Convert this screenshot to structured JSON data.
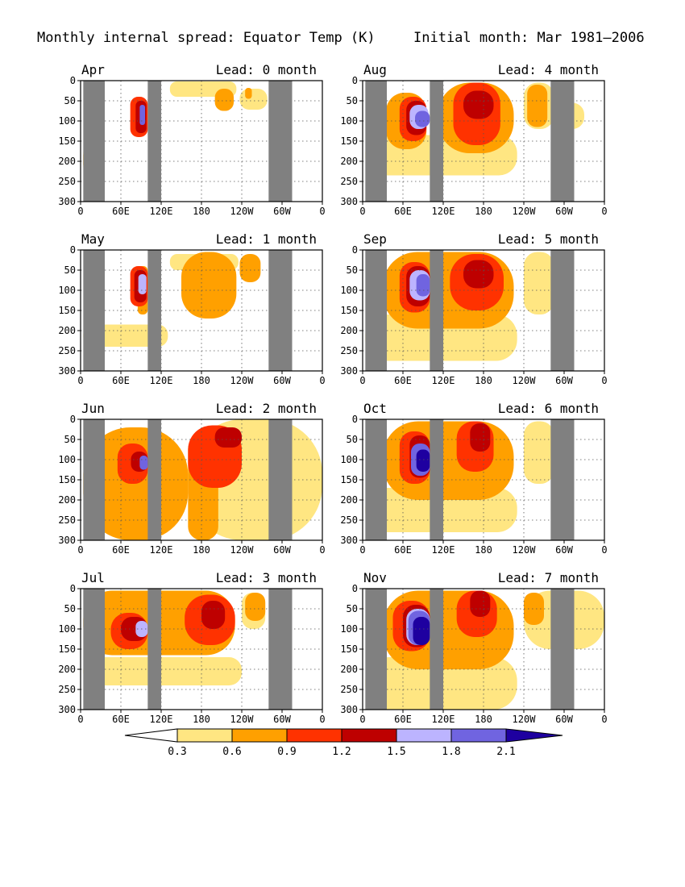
{
  "figure": {
    "title_left": "Monthly internal spread: Equator Temp (K)",
    "title_right": "Initial month: Mar 1981–2006"
  },
  "colorbar": {
    "levels": [
      "0.3",
      "0.6",
      "0.9",
      "1.2",
      "1.5",
      "1.8",
      "2.1"
    ],
    "colors": [
      "#ffffff",
      "#ffe682",
      "#ffa000",
      "#ff3200",
      "#be0000",
      "#bcb4ff",
      "#7064e0",
      "#1e00a0"
    ]
  },
  "land_color": "#808080",
  "chart_data": {
    "type": "heatmap",
    "variable": "Equator Temp (K)",
    "x_ticks": [
      "0",
      "60E",
      "120E",
      "180",
      "120W",
      "60W",
      "0"
    ],
    "y_ticks": [
      "0",
      "50",
      "100",
      "150",
      "200",
      "250",
      "300"
    ],
    "xlim": [
      0,
      360
    ],
    "ylim": [
      0,
      300
    ],
    "grid": true,
    "panels": [
      {
        "month": "Apr",
        "lead": "Lead: 0 month",
        "layers": [
          {
            "level": 1,
            "boxes": [
              [
                4,
                12,
                172,
                220
              ],
              [
                133,
                232,
                2,
                40
              ],
              [
                237,
                278,
                20,
                72
              ]
            ]
          },
          {
            "level": 2,
            "boxes": [
              [
                4,
                12,
                178,
                215
              ],
              [
                200,
                228,
                20,
                75
              ],
              [
                245,
                255,
                18,
                45
              ]
            ]
          },
          {
            "level": 3,
            "boxes": [
              [
                74,
                100,
                40,
                140
              ],
              [
                100,
                120,
                35,
                65
              ]
            ]
          },
          {
            "level": 4,
            "boxes": [
              [
                82,
                98,
                50,
                130
              ]
            ]
          },
          {
            "level": 6,
            "boxes": [
              [
                88,
                96,
                60,
                110
              ]
            ]
          }
        ]
      },
      {
        "month": "Aug",
        "lead": "Lead: 4 month",
        "layers": [
          {
            "level": 1,
            "boxes": [
              [
                4,
                230,
                135,
                235
              ],
              [
                240,
                285,
                5,
                120
              ],
              [
                285,
                330,
                55,
                120
              ]
            ]
          },
          {
            "level": 2,
            "boxes": [
              [
                35,
                95,
                30,
                170
              ],
              [
                112,
                225,
                5,
                180
              ],
              [
                245,
                275,
                10,
                115
              ]
            ]
          },
          {
            "level": 3,
            "boxes": [
              [
                55,
                95,
                40,
                150
              ],
              [
                135,
                205,
                5,
                160
              ]
            ]
          },
          {
            "level": 4,
            "boxes": [
              [
                65,
                95,
                50,
                135
              ],
              [
                150,
                195,
                25,
                95
              ]
            ]
          },
          {
            "level": 5,
            "boxes": [
              [
                70,
                98,
                60,
                120
              ]
            ]
          },
          {
            "level": 6,
            "boxes": [
              [
                78,
                100,
                75,
                115
              ]
            ]
          }
        ]
      },
      {
        "month": "May",
        "lead": "Lead: 1 month",
        "layers": [
          {
            "level": 1,
            "boxes": [
              [
                4,
                130,
                185,
                240
              ],
              [
                133,
                235,
                10,
                50
              ]
            ]
          },
          {
            "level": 2,
            "boxes": [
              [
                150,
                232,
                5,
                170
              ],
              [
                237,
                268,
                10,
                80
              ],
              [
                85,
                100,
                40,
                160
              ]
            ]
          },
          {
            "level": 3,
            "boxes": [
              [
                74,
                100,
                40,
                140
              ]
            ]
          },
          {
            "level": 4,
            "boxes": [
              [
                80,
                98,
                50,
                130
              ]
            ]
          },
          {
            "level": 5,
            "boxes": [
              [
                86,
                98,
                60,
                110
              ]
            ]
          }
        ]
      },
      {
        "month": "Sep",
        "lead": "Lead: 5 month",
        "layers": [
          {
            "level": 1,
            "boxes": [
              [
                4,
                230,
                160,
                275
              ],
              [
                240,
                285,
                5,
                160
              ]
            ]
          },
          {
            "level": 2,
            "boxes": [
              [
                30,
                225,
                5,
                195
              ]
            ]
          },
          {
            "level": 3,
            "boxes": [
              [
                55,
                100,
                30,
                155
              ],
              [
                130,
                210,
                10,
                150
              ]
            ]
          },
          {
            "level": 4,
            "boxes": [
              [
                65,
                100,
                40,
                140
              ],
              [
                150,
                195,
                25,
                95
              ]
            ]
          },
          {
            "level": 5,
            "boxes": [
              [
                70,
                100,
                50,
                125
              ]
            ]
          },
          {
            "level": 6,
            "boxes": [
              [
                80,
                100,
                60,
                115
              ]
            ]
          }
        ]
      },
      {
        "month": "Jun",
        "lead": "Lead: 2 month",
        "layers": [
          {
            "level": 1,
            "boxes": [
              [
                160,
                360,
                0,
                300
              ]
            ]
          },
          {
            "level": 2,
            "boxes": [
              [
                4,
                160,
                20,
                300
              ],
              [
                160,
                205,
                40,
                300
              ]
            ]
          },
          {
            "level": 3,
            "boxes": [
              [
                55,
                100,
                60,
                160
              ],
              [
                160,
                240,
                15,
                170
              ]
            ]
          },
          {
            "level": 4,
            "boxes": [
              [
                75,
                100,
                80,
                130
              ],
              [
                200,
                240,
                20,
                70
              ]
            ]
          },
          {
            "level": 6,
            "boxes": [
              [
                88,
                100,
                90,
                125
              ]
            ]
          }
        ]
      },
      {
        "month": "Oct",
        "lead": "Lead: 6 month",
        "layers": [
          {
            "level": 1,
            "boxes": [
              [
                4,
                230,
                170,
                280
              ],
              [
                240,
                285,
                5,
                160
              ]
            ]
          },
          {
            "level": 2,
            "boxes": [
              [
                30,
                225,
                5,
                200
              ]
            ]
          },
          {
            "level": 3,
            "boxes": [
              [
                55,
                100,
                30,
                160
              ],
              [
                140,
                195,
                5,
                130
              ]
            ]
          },
          {
            "level": 4,
            "boxes": [
              [
                70,
                100,
                40,
                145
              ],
              [
                160,
                190,
                10,
                80
              ]
            ]
          },
          {
            "level": 6,
            "boxes": [
              [
                72,
                100,
                60,
                140
              ]
            ]
          },
          {
            "level": 7,
            "boxes": [
              [
                80,
                100,
                75,
                130
              ]
            ]
          }
        ]
      },
      {
        "month": "Jul",
        "lead": "Lead: 3 month",
        "layers": [
          {
            "level": 1,
            "boxes": [
              [
                4,
                240,
                170,
                240
              ],
              [
                240,
                275,
                10,
                100
              ]
            ]
          },
          {
            "level": 2,
            "boxes": [
              [
                4,
                230,
                5,
                165
              ],
              [
                245,
                275,
                10,
                80
              ]
            ]
          },
          {
            "level": 3,
            "boxes": [
              [
                45,
                100,
                60,
                150
              ],
              [
                155,
                230,
                15,
                140
              ]
            ]
          },
          {
            "level": 4,
            "boxes": [
              [
                60,
                100,
                70,
                130
              ],
              [
                180,
                215,
                30,
                100
              ]
            ]
          },
          {
            "level": 5,
            "boxes": [
              [
                82,
                100,
                80,
                120
              ]
            ]
          }
        ]
      },
      {
        "month": "Nov",
        "lead": "Lead: 7 month",
        "layers": [
          {
            "level": 1,
            "boxes": [
              [
                4,
                230,
                170,
                300
              ],
              [
                240,
                360,
                5,
                150
              ]
            ]
          },
          {
            "level": 2,
            "boxes": [
              [
                30,
                225,
                5,
                200
              ],
              [
                240,
                270,
                10,
                90
              ]
            ]
          },
          {
            "level": 3,
            "boxes": [
              [
                45,
                100,
                30,
                155
              ],
              [
                140,
                200,
                5,
                120
              ]
            ]
          },
          {
            "level": 4,
            "boxes": [
              [
                60,
                100,
                40,
                145
              ],
              [
                160,
                190,
                5,
                70
              ]
            ]
          },
          {
            "level": 5,
            "boxes": [
              [
                65,
                100,
                50,
                140
              ]
            ]
          },
          {
            "level": 6,
            "boxes": [
              [
                68,
                100,
                55,
                140
              ]
            ]
          },
          {
            "level": 7,
            "boxes": [
              [
                75,
                100,
                70,
                140
              ]
            ]
          }
        ]
      }
    ]
  }
}
